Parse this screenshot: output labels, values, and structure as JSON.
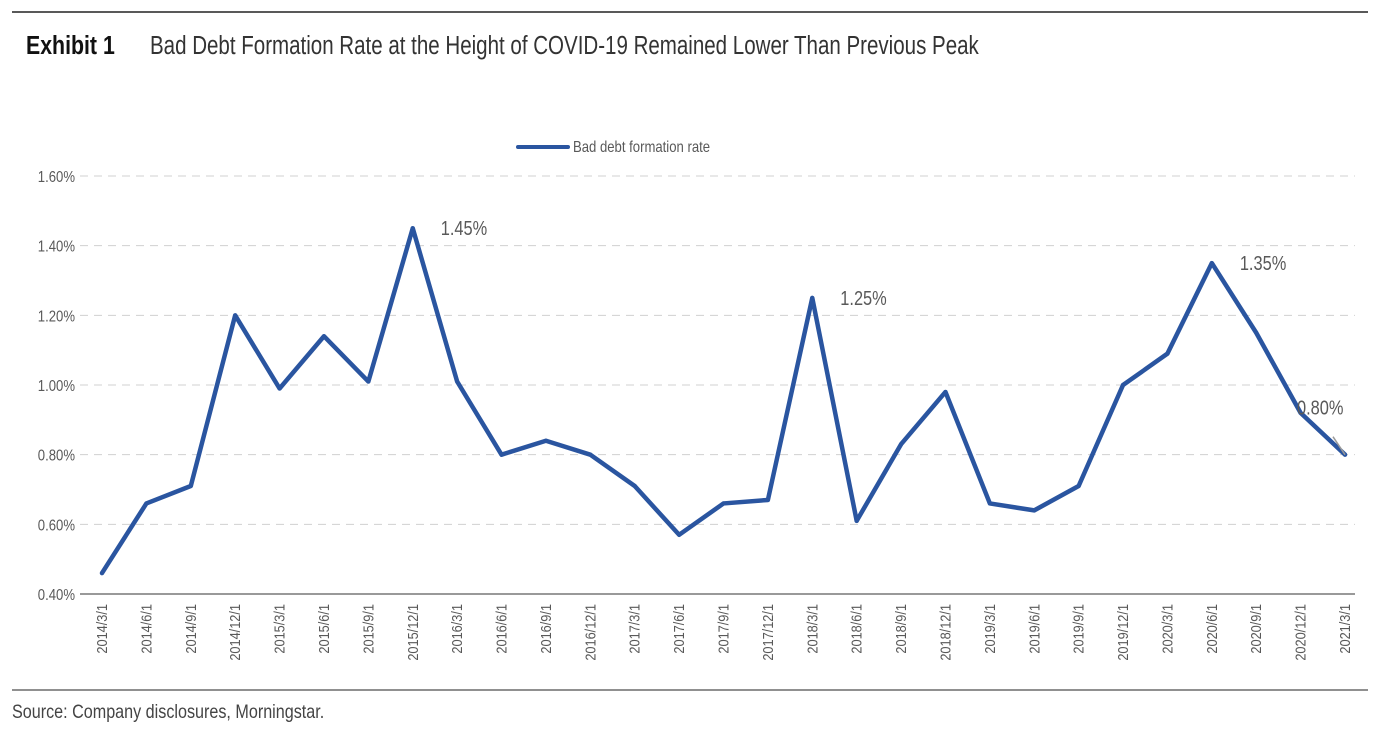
{
  "header": {
    "exhibit_label": "Exhibit 1",
    "title": "Bad Debt Formation Rate at the Height of COVID-19 Remained Lower Than Previous Peak"
  },
  "footer": {
    "source": "Source: Company disclosures, Morningstar."
  },
  "colors": {
    "series": "#2a55a0",
    "grid": "#d0d0d0",
    "text": "#595959"
  },
  "chart_data": {
    "type": "line",
    "title": "Bad Debt Formation Rate at the Height of COVID-19 Remained Lower Than Previous Peak",
    "xlabel": "",
    "ylabel": "",
    "ylim": [
      0.4,
      1.6
    ],
    "yticks": [
      "0.40%",
      "0.60%",
      "0.80%",
      "1.00%",
      "1.20%",
      "1.40%",
      "1.60%"
    ],
    "grid": true,
    "legend_position": "top-center",
    "categories": [
      "2014/3/1",
      "2014/6/1",
      "2014/9/1",
      "2014/12/1",
      "2015/3/1",
      "2015/6/1",
      "2015/9/1",
      "2015/12/1",
      "2016/3/1",
      "2016/6/1",
      "2016/9/1",
      "2016/12/1",
      "2017/3/1",
      "2017/6/1",
      "2017/9/1",
      "2017/12/1",
      "2018/3/1",
      "2018/6/1",
      "2018/9/1",
      "2018/12/1",
      "2019/3/1",
      "2019/6/1",
      "2019/9/1",
      "2019/12/1",
      "2020/3/1",
      "2020/6/1",
      "2020/9/1",
      "2020/12/1",
      "2021/3/1"
    ],
    "series": [
      {
        "name": "Bad debt formation rate",
        "values": [
          0.46,
          0.66,
          0.71,
          1.2,
          0.99,
          1.14,
          1.01,
          1.45,
          1.01,
          0.8,
          0.84,
          0.8,
          0.71,
          0.57,
          0.66,
          0.67,
          1.25,
          0.61,
          0.83,
          0.98,
          0.66,
          0.64,
          0.71,
          1.0,
          1.09,
          1.35,
          1.15,
          0.92,
          0.8
        ]
      }
    ],
    "annotations": [
      {
        "index": 7,
        "text": "1.45%"
      },
      {
        "index": 16,
        "text": "1.25%"
      },
      {
        "index": 25,
        "text": "1.35%"
      },
      {
        "index": 28,
        "text": "0.80%"
      }
    ]
  }
}
